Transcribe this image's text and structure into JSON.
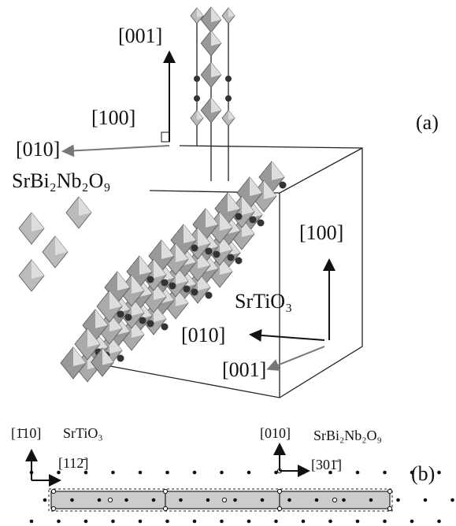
{
  "panel_a": {
    "label": "(a)",
    "top_axes": {
      "up": "[001]",
      "right": "[100]",
      "left": "[010]"
    },
    "top_compound": "SrBi₂Nb₂O₉",
    "bottom_axes": {
      "up": "[100]",
      "left": "[010]",
      "down": "[001]"
    },
    "bottom_compound": "SrTiO₃"
  },
  "panel_b": {
    "label": "(b)",
    "left_axes": {
      "up": "[1̄10]",
      "right": "[112̄]"
    },
    "left_compound": "SrTiO₃",
    "right_axes": {
      "up": "[010]",
      "right": "[301̄]"
    },
    "right_compound": "SrBi₂Nb₂O₉"
  }
}
